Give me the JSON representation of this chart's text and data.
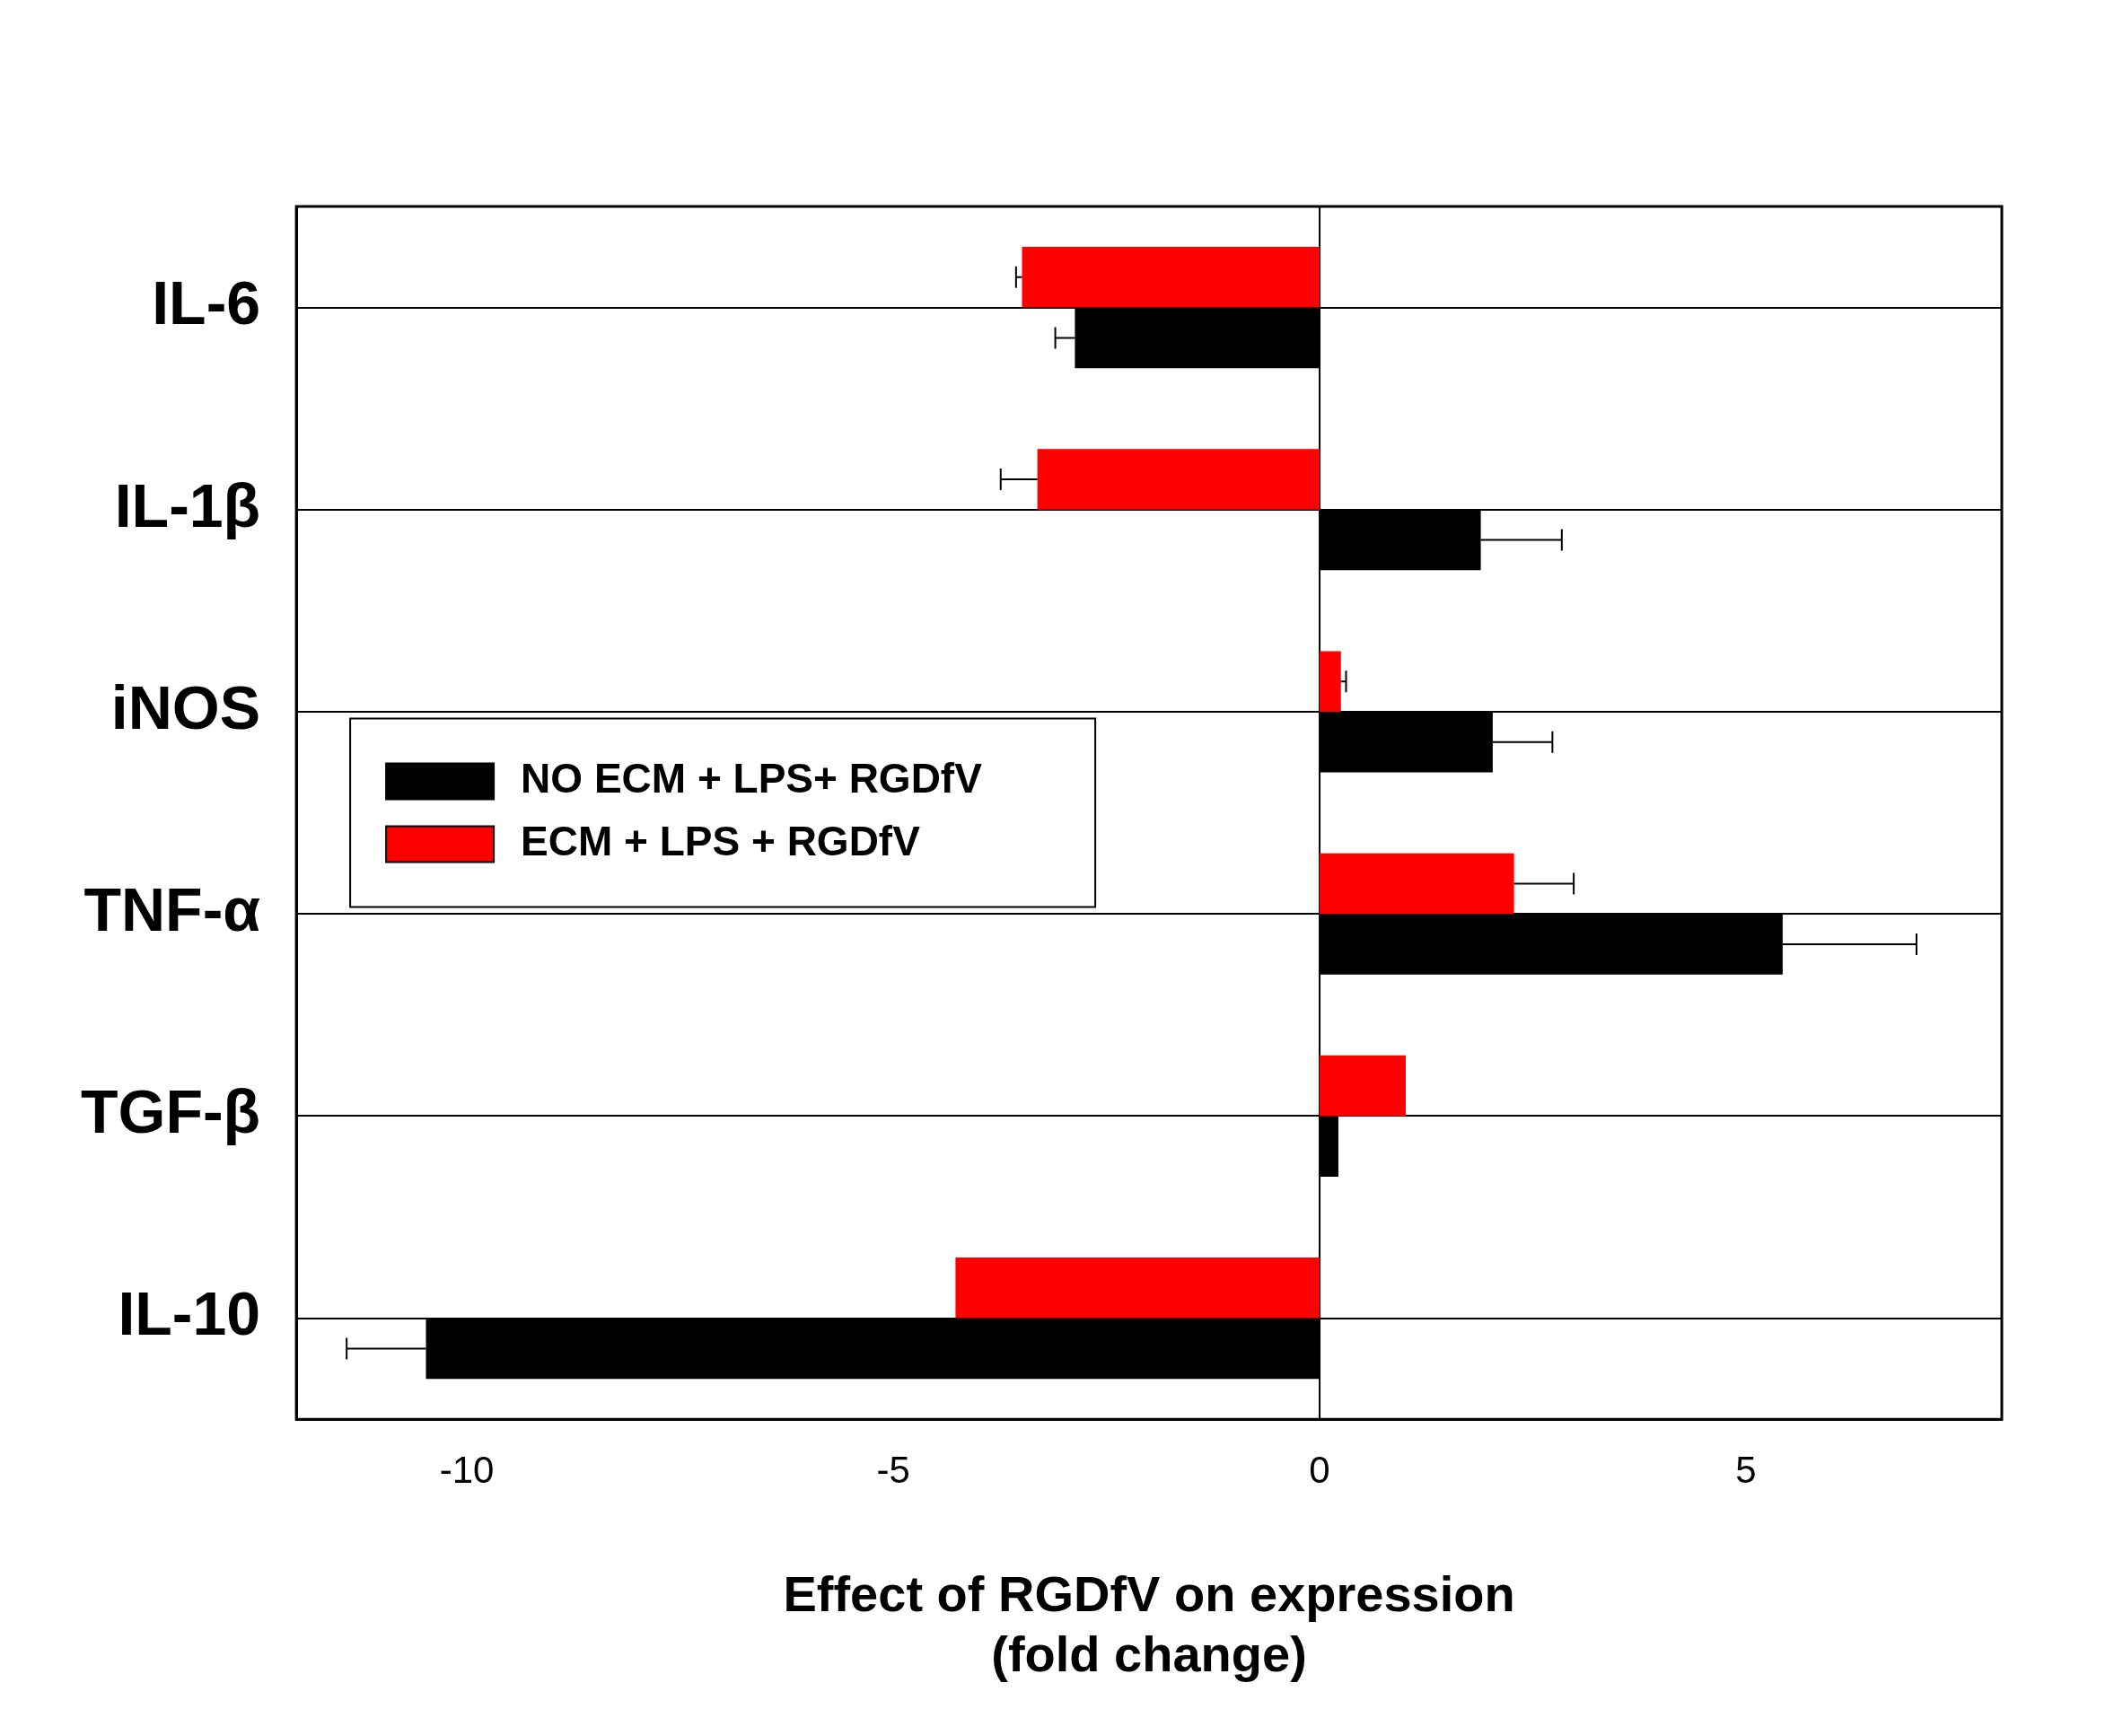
{
  "chart_data": {
    "type": "bar",
    "orientation": "horizontal",
    "categories": [
      "IL-6",
      "IL-1β",
      "iNOS",
      "TNF-α",
      "TGF-β",
      "IL-10"
    ],
    "series": [
      {
        "name": "NO ECM + LPS+ RGDfV",
        "color": "#000000",
        "values": [
          -2.87,
          1.89,
          2.03,
          5.43,
          0.22,
          -10.48
        ],
        "errors": [
          0.23,
          0.95,
          0.7,
          1.57,
          null,
          0.93
        ]
      },
      {
        "name": "ECM + LPS + RGDfV",
        "color": "#ff0000",
        "values": [
          -3.49,
          -3.31,
          0.25,
          2.28,
          1.01,
          -4.27
        ],
        "errors": [
          0.07,
          0.43,
          0.06,
          0.7,
          null,
          null
        ]
      }
    ],
    "xlabel": "Effect of RGDfV on expression\n(fold change)",
    "xlim": [
      -12,
      8
    ],
    "xticks": [
      -10,
      -5,
      0,
      5
    ],
    "ref_lines": [
      {
        "axis": "x",
        "value": 0
      }
    ],
    "grid": "y",
    "legend": "left"
  }
}
